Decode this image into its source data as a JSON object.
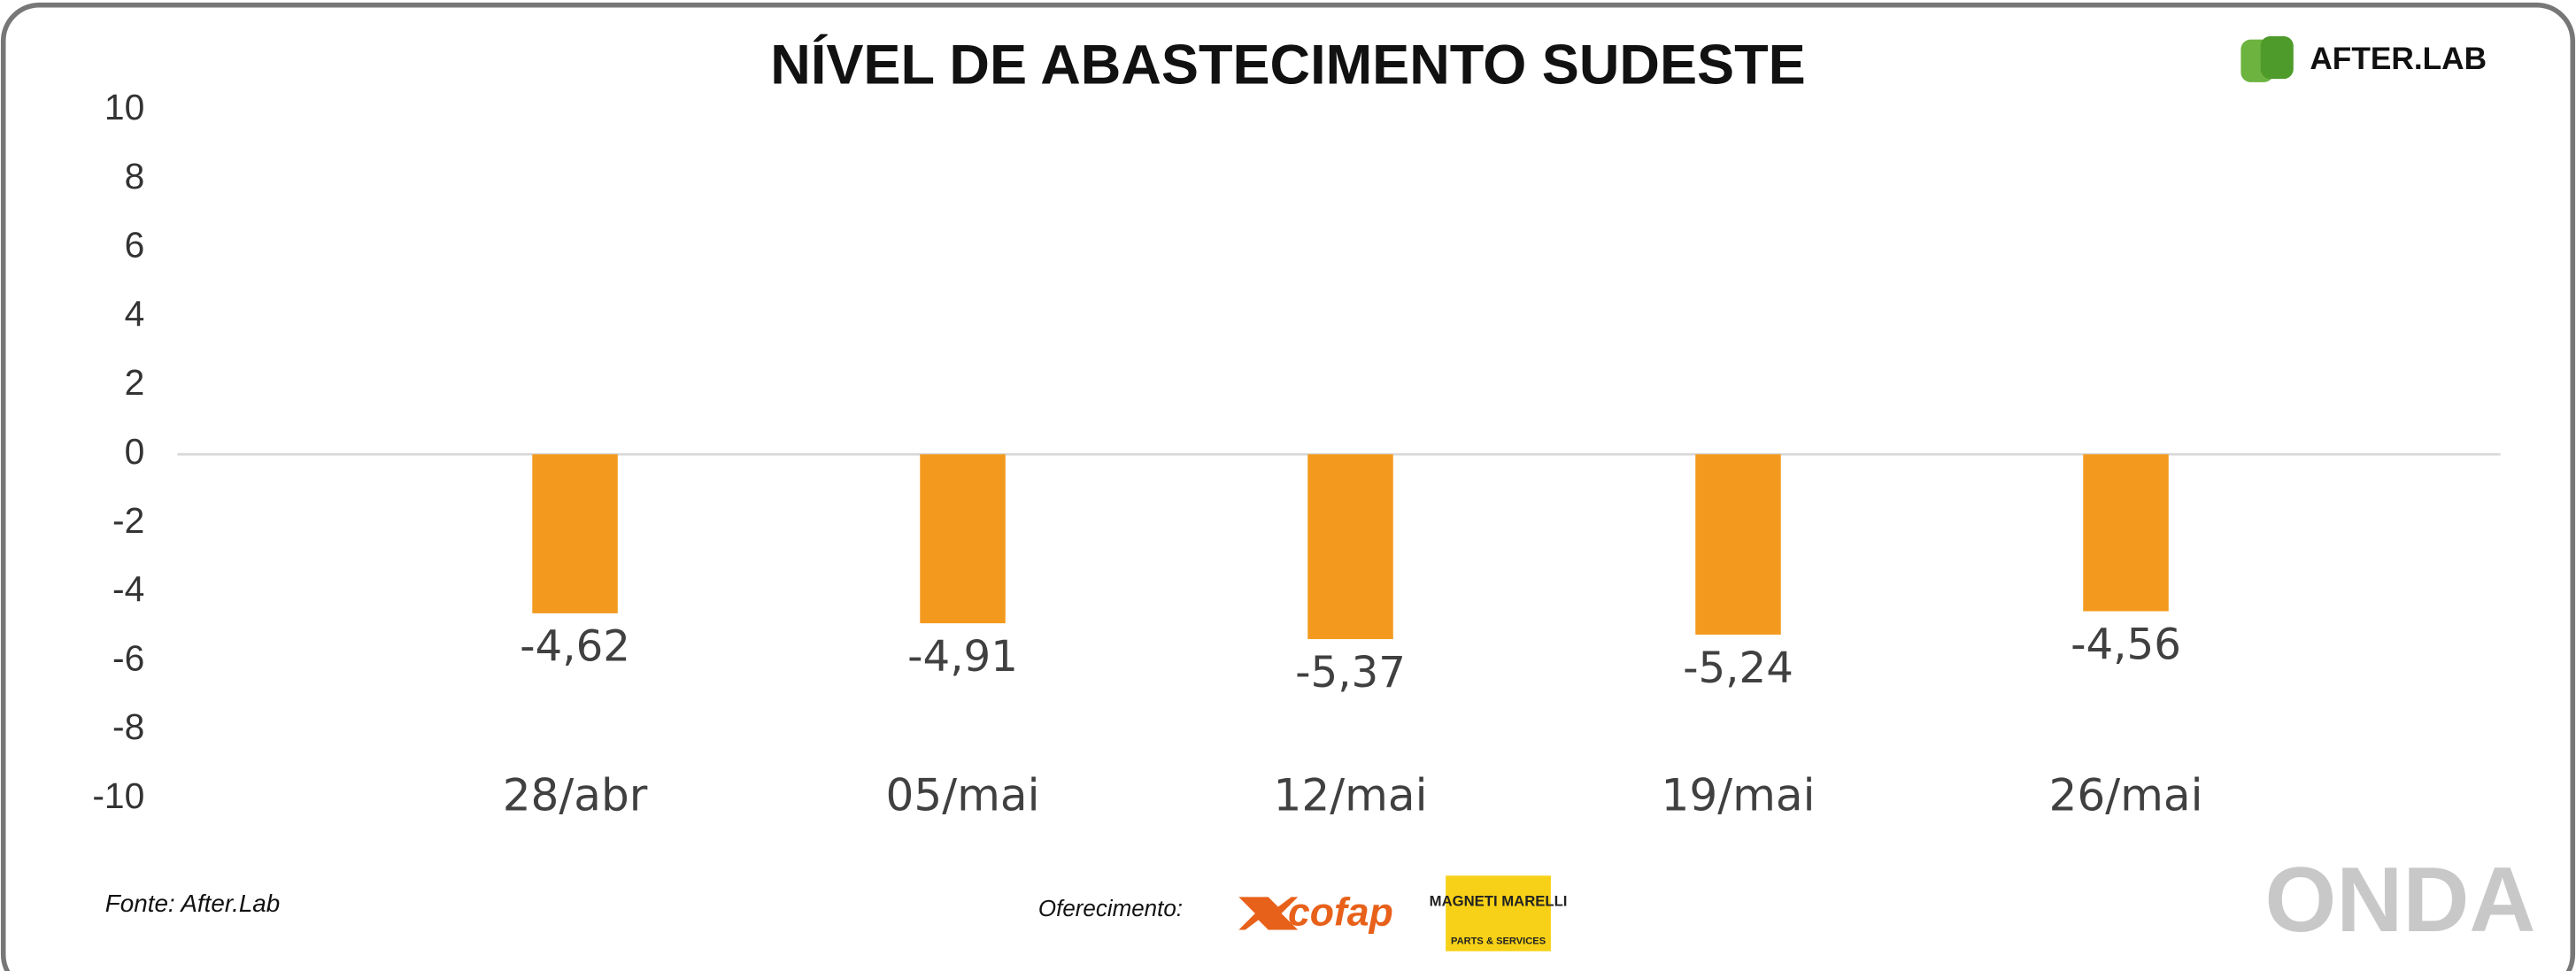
{
  "chart_data": {
    "type": "bar",
    "title": "NÍVEL DE ABASTECIMENTO SUDESTE",
    "categories": [
      "28/abr",
      "05/mai",
      "12/mai",
      "19/mai",
      "26/mai"
    ],
    "values": [
      -4.62,
      -4.91,
      -5.37,
      -5.24,
      -4.56
    ],
    "value_labels": [
      "-4,62",
      "-4,91",
      "-5,37",
      "-5,24",
      "-4,56"
    ],
    "color": "#f39a1e",
    "ylim": [
      -10,
      10
    ],
    "yticks": [
      -10,
      -8,
      -6,
      -4,
      -2,
      0,
      2,
      4,
      6,
      8,
      10
    ],
    "grid": false
  },
  "footer": {
    "source": "Fonte: After.Lab",
    "sponsor_label": "Oferecimento:"
  },
  "logos": {
    "afterlab": "AFTER.LAB",
    "cofap": "cofap",
    "magneti": "MAGNETI MARELLI",
    "magneti_sub": "PARTS & SERVICES",
    "onda": "ONDA"
  }
}
